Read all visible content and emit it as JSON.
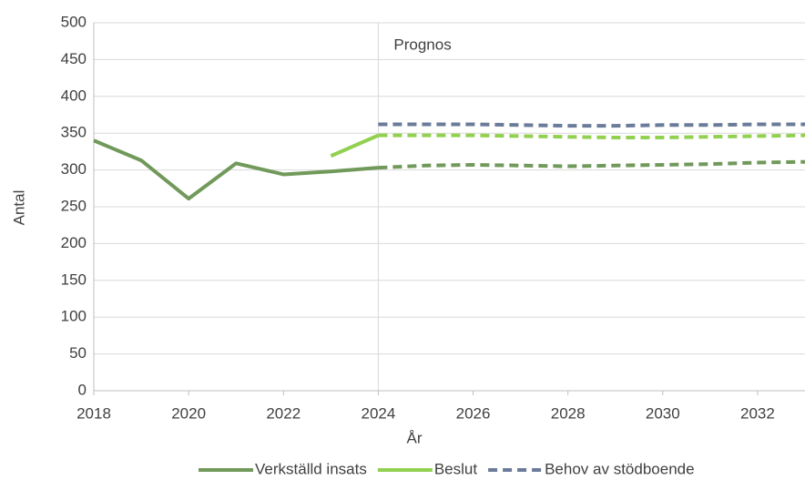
{
  "chart_data": {
    "type": "line",
    "x_label": "År",
    "y_label": "Antal",
    "x": [
      2018,
      2019,
      2020,
      2021,
      2022,
      2023,
      2024,
      2025,
      2026,
      2027,
      2028,
      2029,
      2030,
      2031,
      2032,
      2033
    ],
    "series": [
      {
        "name": "Verkställd insats",
        "color": "#70995a",
        "dash_from": 2024,
        "values": [
          340,
          313,
          261,
          309,
          294,
          298,
          303,
          306,
          307,
          306,
          305,
          306,
          307,
          308,
          310,
          311
        ]
      },
      {
        "name": "Beslut",
        "color": "#92d050",
        "dash_from": 2024,
        "values": [
          null,
          null,
          null,
          null,
          null,
          319,
          347,
          347,
          347,
          346,
          345,
          344,
          344,
          345,
          346,
          347
        ]
      },
      {
        "name": "Behov av stödboende",
        "color": "#6b7b9a",
        "dash_from": 2024,
        "values": [
          null,
          null,
          null,
          null,
          null,
          null,
          362,
          362,
          362,
          361,
          360,
          360,
          361,
          361,
          362,
          362
        ]
      }
    ],
    "xlim": [
      2018,
      2033
    ],
    "xticks": [
      2018,
      2020,
      2022,
      2024,
      2026,
      2028,
      2030,
      2032
    ],
    "ylim": [
      0,
      500
    ],
    "yticks": [
      0,
      50,
      100,
      150,
      200,
      250,
      300,
      350,
      400,
      450,
      500
    ],
    "grid": true,
    "legend": "bottom",
    "annotations": [
      {
        "x": 2024,
        "text": "Prognos"
      }
    ]
  }
}
